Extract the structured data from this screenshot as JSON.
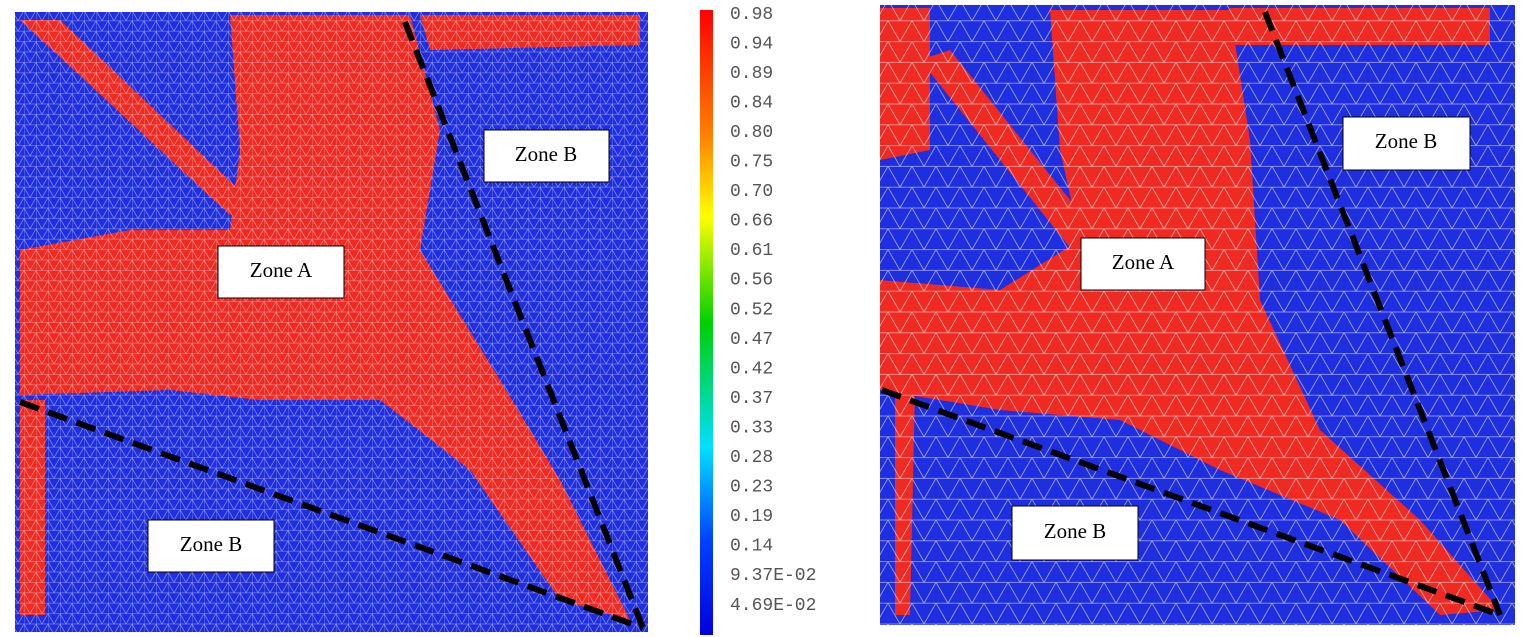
{
  "colorbar": {
    "labels": [
      "0.98",
      "0.94",
      "0.89",
      "0.84",
      "0.80",
      "0.75",
      "0.70",
      "0.66",
      "0.61",
      "0.56",
      "0.52",
      "0.47",
      "0.42",
      "0.37",
      "0.33",
      "0.28",
      "0.23",
      "0.19",
      "0.14",
      "9.37E-02",
      "4.69E-02"
    ]
  },
  "panels": [
    {
      "zones": [
        "Zone B",
        "Zone A",
        "Zone B"
      ]
    },
    {
      "zones": [
        "Zone B",
        "Zone A",
        "Zone B"
      ]
    }
  ]
}
